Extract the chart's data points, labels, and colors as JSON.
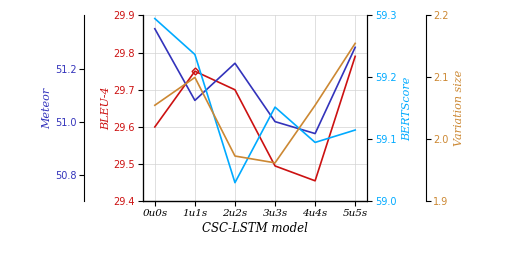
{
  "x_labels": [
    "0u0s",
    "1u1s",
    "2u2s",
    "3u3s",
    "4u4s",
    "5u5s"
  ],
  "x_values": [
    0,
    1,
    2,
    3,
    4,
    5
  ],
  "meteor": [
    51.35,
    51.08,
    51.22,
    51.0,
    50.955,
    51.28
  ],
  "bleu4": [
    29.6,
    29.75,
    29.7,
    29.495,
    29.455,
    29.79
  ],
  "bertscore": [
    59.295,
    59.237,
    59.03,
    59.152,
    59.095,
    59.115
  ],
  "varsize": [
    2.055,
    2.1,
    1.973,
    1.962,
    2.055,
    2.155
  ],
  "meteor_color": "#3333bb",
  "bleu4_color": "#cc1111",
  "bertscore_color": "#00aaff",
  "varsize_color": "#cc8833",
  "meteor_ylim": [
    50.7,
    51.4
  ],
  "bleu4_ylim": [
    29.4,
    29.9
  ],
  "bertscore_ylim": [
    59.0,
    59.3
  ],
  "varsize_ylim": [
    1.9,
    2.2
  ],
  "meteor_ticks": [
    50.8,
    51.0,
    51.2
  ],
  "bleu4_ticks": [
    29.4,
    29.5,
    29.6,
    29.7,
    29.8,
    29.9
  ],
  "bertscore_ticks": [
    59.0,
    59.1,
    59.2,
    59.3
  ],
  "varsize_ticks": [
    1.9,
    2.0,
    2.1,
    2.2
  ],
  "xlabel": "CSC-LSTM model",
  "ylabel_meteor": "Meteor",
  "ylabel_bleu": "BLEU-4",
  "ylabel_bert": "BERTScore",
  "ylabel_var": "Variation size",
  "figsize": [
    5.1,
    2.58
  ],
  "dpi": 100
}
